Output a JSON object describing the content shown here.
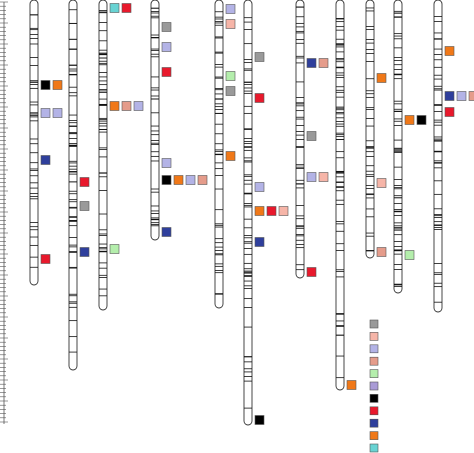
{
  "figure": {
    "type": "genetic-linkage-map",
    "palette": {
      "grey": "#9a9a9a",
      "pink": "#f6b5a8",
      "lavender": "#b3b3e6",
      "salmon": "#e59c8b",
      "lightgreen": "#b4eeac",
      "purple": "#a99bd6",
      "black": "#000000",
      "red": "#e8192c",
      "navy": "#2f3f9c",
      "orange": "#f07818",
      "cyan": "#68d3d3"
    },
    "legend_swatches": [
      "grey",
      "pink",
      "lavender",
      "salmon",
      "lightgreen",
      "purple",
      "black",
      "red",
      "navy",
      "orange",
      "cyan"
    ],
    "chromosomes": [
      {
        "top": 0,
        "bottom": 285,
        "markers": [
          {
            "pos": 85,
            "colors": [
              "black",
              "orange"
            ]
          },
          {
            "pos": 113,
            "colors": [
              "lavender",
              "lavender"
            ]
          },
          {
            "pos": 160,
            "colors": [
              "navy"
            ]
          },
          {
            "pos": 259,
            "colors": [
              "red"
            ]
          }
        ]
      },
      {
        "top": 0,
        "bottom": 370,
        "markers": [
          {
            "pos": 182,
            "colors": [
              "red"
            ]
          },
          {
            "pos": 206,
            "colors": [
              "grey"
            ]
          },
          {
            "pos": 252,
            "colors": [
              "navy"
            ]
          }
        ]
      },
      {
        "top": 0,
        "bottom": 310,
        "markers": [
          {
            "pos": 8,
            "colors": [
              "cyan",
              "red"
            ]
          },
          {
            "pos": 106,
            "colors": [
              "orange",
              "salmon",
              "lavender"
            ]
          },
          {
            "pos": 249,
            "colors": [
              "lightgreen"
            ]
          }
        ]
      },
      {
        "top": 0,
        "bottom": 240,
        "markers": [
          {
            "pos": 27,
            "colors": [
              "grey"
            ]
          },
          {
            "pos": 47,
            "colors": [
              "lavender"
            ]
          },
          {
            "pos": 72,
            "colors": [
              "red"
            ]
          },
          {
            "pos": 163,
            "colors": [
              "lavender"
            ]
          },
          {
            "pos": 180,
            "colors": [
              "black",
              "orange",
              "lavender",
              "salmon"
            ]
          },
          {
            "pos": 232,
            "colors": [
              "navy"
            ]
          }
        ]
      },
      {
        "top": 0,
        "bottom": 308,
        "markers": [
          {
            "pos": 9,
            "colors": [
              "lavender"
            ]
          },
          {
            "pos": 24,
            "colors": [
              "pink"
            ]
          },
          {
            "pos": 76,
            "colors": [
              "lightgreen"
            ]
          },
          {
            "pos": 91,
            "colors": [
              "grey"
            ]
          },
          {
            "pos": 156,
            "colors": [
              "orange"
            ]
          }
        ]
      },
      {
        "top": 0,
        "bottom": 425,
        "markers": [
          {
            "pos": 57,
            "colors": [
              "grey"
            ]
          },
          {
            "pos": 98,
            "colors": [
              "red"
            ]
          },
          {
            "pos": 187,
            "colors": [
              "lavender"
            ]
          },
          {
            "pos": 211,
            "colors": [
              "orange",
              "red",
              "pink"
            ]
          },
          {
            "pos": 242,
            "colors": [
              "navy"
            ]
          },
          {
            "pos": 420,
            "colors": [
              "black"
            ]
          }
        ]
      },
      {
        "top": 0,
        "bottom": 278,
        "markers": [
          {
            "pos": 63,
            "colors": [
              "navy",
              "salmon"
            ]
          },
          {
            "pos": 136,
            "colors": [
              "grey"
            ]
          },
          {
            "pos": 177,
            "colors": [
              "lavender",
              "pink"
            ]
          },
          {
            "pos": 272,
            "colors": [
              "red"
            ]
          }
        ]
      },
      {
        "top": 0,
        "bottom": 390,
        "markers": [
          {
            "pos": 385,
            "colors": [
              "orange"
            ]
          }
        ]
      },
      {
        "top": 0,
        "bottom": 258,
        "markers": [
          {
            "pos": 78,
            "colors": [
              "orange"
            ]
          },
          {
            "pos": 183,
            "colors": [
              "pink"
            ]
          },
          {
            "pos": 252,
            "colors": [
              "salmon"
            ]
          }
        ]
      },
      {
        "top": 0,
        "bottom": 293,
        "markers": [
          {
            "pos": 120,
            "colors": [
              "orange",
              "black"
            ]
          },
          {
            "pos": 255,
            "colors": [
              "lightgreen"
            ]
          }
        ]
      },
      {
        "top": 0,
        "bottom": 312,
        "markers": [
          {
            "pos": 51,
            "colors": [
              "orange"
            ]
          },
          {
            "pos": 96,
            "colors": [
              "navy",
              "lavender",
              "salmon"
            ]
          },
          {
            "pos": 112,
            "colors": [
              "red"
            ]
          }
        ]
      }
    ]
  }
}
